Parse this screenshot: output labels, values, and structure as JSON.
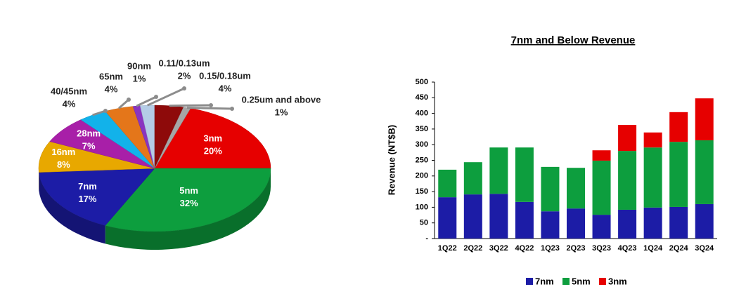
{
  "chart_data": [
    {
      "type": "pie",
      "categories": [
        "3nm",
        "5nm",
        "7nm",
        "16nm",
        "28nm",
        "40/45nm",
        "65nm",
        "90nm",
        "0.11/0.13um",
        "0.15/0.18um",
        "0.25um and above"
      ],
      "values": [
        20,
        32,
        17,
        8,
        7,
        4,
        4,
        1,
        2,
        4,
        1
      ],
      "value_labels": [
        "20%",
        "32%",
        "17%",
        "8%",
        "7%",
        "4%",
        "4%",
        "1%",
        "2%",
        "4%",
        "1%"
      ],
      "colors": [
        "#e60000",
        "#0d9e3e",
        "#1c1ca6",
        "#e8a800",
        "#a81fa8",
        "#12b2ea",
        "#e4761a",
        "#8a34c0",
        "#b4cce6",
        "#8e0a0a",
        "#a6a6a6"
      ]
    },
    {
      "type": "bar",
      "stacked": true,
      "title": "7nm and Below Revenue",
      "y_label": "Revenue (NT$B)",
      "categories": [
        "1Q22",
        "2Q22",
        "3Q22",
        "4Q22",
        "1Q23",
        "2Q23",
        "3Q23",
        "4Q23",
        "1Q24",
        "2Q24",
        "3Q24"
      ],
      "series": [
        {
          "name": "7nm",
          "color": "#1c1ca6",
          "values": [
            132,
            141,
            143,
            117,
            87,
            96,
            76,
            92,
            99,
            101,
            110
          ]
        },
        {
          "name": "5nm",
          "color": "#0d9e3e",
          "values": [
            88,
            103,
            148,
            174,
            142,
            130,
            173,
            188,
            192,
            208,
            204
          ]
        },
        {
          "name": "3nm",
          "color": "#e60000",
          "values": [
            null,
            null,
            null,
            null,
            null,
            null,
            33,
            83,
            48,
            95,
            134
          ]
        }
      ],
      "ylim": [
        0,
        500
      ],
      "yticks": [
        {
          "value": 0,
          "label": "-"
        },
        50,
        100,
        150,
        200,
        250,
        300,
        350,
        400,
        450,
        500
      ],
      "legend": "bottom"
    }
  ]
}
